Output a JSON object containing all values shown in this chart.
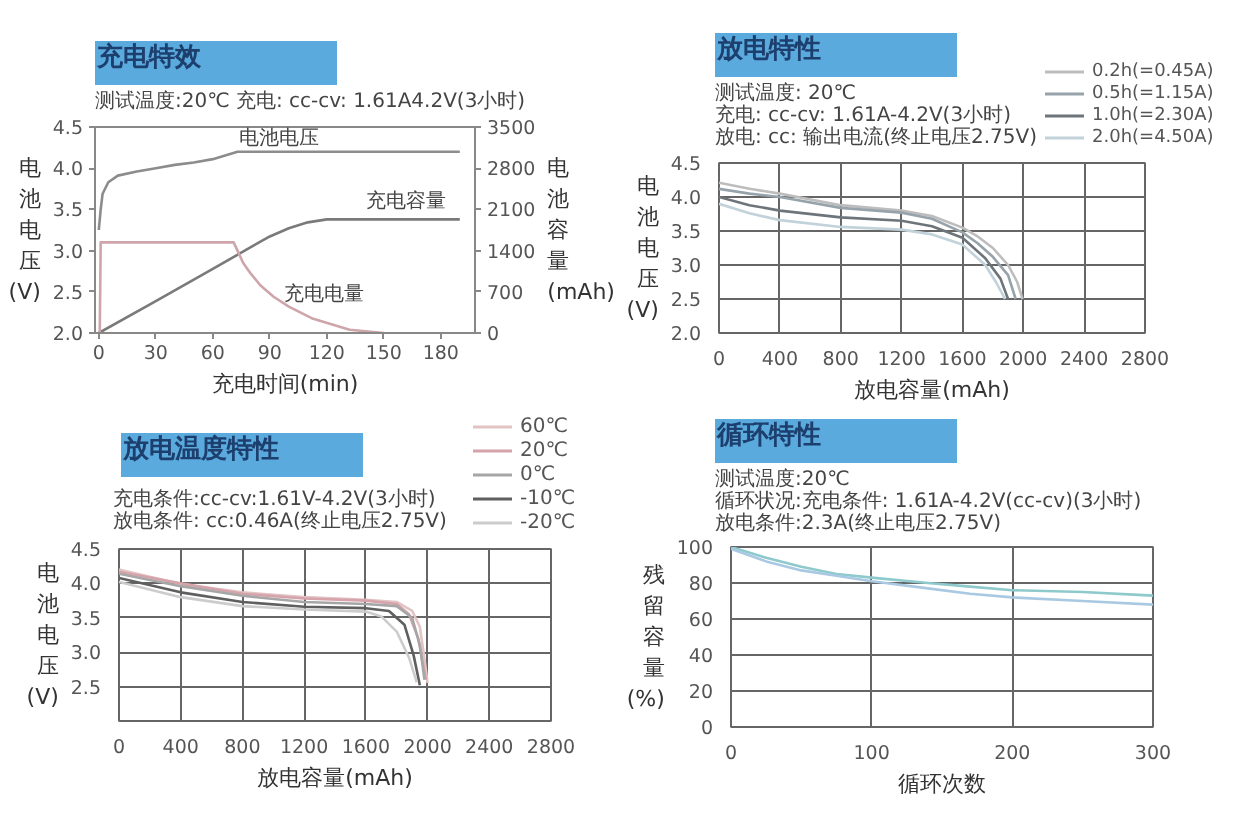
{
  "chart_data": [
    {
      "type": "line",
      "title": "充电特效",
      "subtitle": "测试温度:20℃ 充电: cc-cv: 1.61A4.2V(3小时)",
      "xlabel": "充电时间(min)",
      "ylabel": "电池电压(V)",
      "y2label": "电池容量(mAh)",
      "xlim": [
        -2,
        198
      ],
      "xticks": [
        0,
        30,
        60,
        90,
        120,
        150,
        180
      ],
      "ylim": [
        2,
        4.5
      ],
      "yticks": [
        {
          "value": 2,
          "label": "2.0"
        },
        2.5,
        {
          "value": 3,
          "label": "3.0"
        },
        3.5,
        {
          "value": 4,
          "label": "4.0"
        },
        4.5
      ],
      "y2lim": [
        0,
        3500
      ],
      "y2ticks": [
        0,
        700,
        1400,
        2100,
        2800,
        3500
      ],
      "series": [
        {
          "name": "电池电压",
          "color": "#8c8c8c",
          "x": [
            0,
            1,
            2,
            5,
            10,
            20,
            30,
            40,
            50,
            60,
            73,
            190
          ],
          "values": [
            3.25,
            3.5,
            3.69,
            3.83,
            3.91,
            3.96,
            4.0,
            4.04,
            4.07,
            4.11,
            4.2,
            4.2
          ]
        },
        {
          "name": "充电容量",
          "color": "#7a7a7a",
          "axis": "y2",
          "x": [
            0,
            30,
            60,
            72,
            80,
            90,
            100,
            110,
            120,
            190
          ],
          "values": [
            0,
            540,
            1090,
            1310,
            1460,
            1640,
            1780,
            1880,
            1930,
            1930
          ]
        },
        {
          "name": "充电电量",
          "color": "#cda5ab",
          "x": [
            0.5,
            1,
            71,
            73,
            76,
            80,
            85,
            92,
            100,
            112,
            132,
            150
          ],
          "values": [
            2.0,
            3.1,
            3.1,
            3.0,
            2.85,
            2.72,
            2.58,
            2.44,
            2.32,
            2.18,
            2.04,
            2.0
          ]
        }
      ]
    },
    {
      "type": "line",
      "title": "放电特性",
      "subtitle": "测试温度: 20℃\n充电: cc-cv: 1.61A-4.2V(3小时)\n放电: cc: 输出电流(终止电压2.75V)",
      "xlabel": "放电容量(mAh)",
      "ylabel": "电池电压(V)",
      "xlim": [
        0,
        2800
      ],
      "xticks": [
        0,
        400,
        800,
        1200,
        1600,
        2000,
        2400,
        2800
      ],
      "ylim": [
        2,
        4.5
      ],
      "yticks": [
        {
          "value": 2,
          "label": "2.0"
        },
        2.5,
        {
          "value": 3,
          "label": "3.0"
        },
        3.5,
        {
          "value": 4,
          "label": "4.0"
        },
        4.5
      ],
      "grid": true,
      "legend": "top right",
      "series": [
        {
          "name": "0.2h(=0.45A)",
          "color": "#bdbdbd",
          "x": [
            0,
            200,
            400,
            800,
            1200,
            1400,
            1600,
            1700,
            1800,
            1900,
            1960,
            1995
          ],
          "values": [
            4.21,
            4.12,
            4.05,
            3.88,
            3.8,
            3.72,
            3.55,
            3.42,
            3.25,
            3.0,
            2.75,
            2.5
          ]
        },
        {
          "name": "0.5h(=1.15A)",
          "color": "#97a3ab",
          "x": [
            0,
            200,
            400,
            800,
            1200,
            1400,
            1600,
            1700,
            1800,
            1900,
            1950
          ],
          "values": [
            4.12,
            4.05,
            4.0,
            3.84,
            3.77,
            3.68,
            3.48,
            3.32,
            3.12,
            2.85,
            2.5
          ]
        },
        {
          "name": "1.0h(=2.30A)",
          "color": "#6e757a",
          "x": [
            0,
            200,
            400,
            800,
            1200,
            1400,
            1600,
            1750,
            1850,
            1900
          ],
          "values": [
            4.0,
            3.88,
            3.8,
            3.7,
            3.65,
            3.57,
            3.4,
            3.1,
            2.8,
            2.5
          ]
        },
        {
          "name": "2.0h(=4.50A)",
          "color": "#c2d2da",
          "x": [
            0,
            200,
            400,
            800,
            1200,
            1400,
            1600,
            1750,
            1820,
            1880
          ],
          "values": [
            3.9,
            3.76,
            3.66,
            3.56,
            3.52,
            3.45,
            3.3,
            3.0,
            2.75,
            2.5
          ]
        }
      ]
    },
    {
      "type": "line",
      "title": "放电温度特性",
      "subtitle": "充电条件:cc-cv:1.61V-4.2V(3小时)\n放电条件: cc:0.46A(终止电压2.75V)",
      "xlabel": "放电容量(mAh)",
      "ylabel": "电池电压(V)",
      "xlim": [
        0,
        2800
      ],
      "xticks": [
        0,
        400,
        800,
        1200,
        1600,
        2000,
        2400,
        2800
      ],
      "ylim": [
        2,
        4.5
      ],
      "yticks": [
        2.5,
        {
          "value": 3,
          "label": "3.0"
        },
        3.5,
        {
          "value": 4,
          "label": "4.0"
        },
        4.5
      ],
      "grid": true,
      "legend": "top right",
      "series": [
        {
          "name": "60℃",
          "color": "#e2c4c4",
          "x": [
            0,
            400,
            800,
            1200,
            1600,
            1800,
            1900,
            1950,
            1980,
            2000
          ],
          "values": [
            4.2,
            3.99,
            3.87,
            3.8,
            3.76,
            3.73,
            3.6,
            3.37,
            2.9,
            2.55
          ]
        },
        {
          "name": "20℃",
          "color": "#d6a3ab",
          "x": [
            0,
            400,
            800,
            1200,
            1600,
            1800,
            1880,
            1940,
            1990
          ],
          "values": [
            4.17,
            4.0,
            3.85,
            3.78,
            3.75,
            3.7,
            3.55,
            3.2,
            2.6
          ]
        },
        {
          "name": "0℃",
          "color": "#a6a6a6",
          "x": [
            0,
            400,
            800,
            1200,
            1600,
            1800,
            1900,
            1950,
            1980
          ],
          "values": [
            4.14,
            3.96,
            3.82,
            3.73,
            3.7,
            3.67,
            3.5,
            3.1,
            2.6
          ]
        },
        {
          "name": "-10℃",
          "color": "#5f5f5f",
          "x": [
            0,
            400,
            800,
            1200,
            1600,
            1750,
            1850,
            1910,
            1950
          ],
          "values": [
            4.08,
            3.87,
            3.73,
            3.66,
            3.64,
            3.6,
            3.4,
            2.95,
            2.52
          ]
        },
        {
          "name": "-20℃",
          "color": "#cccccc",
          "x": [
            0,
            400,
            800,
            1200,
            1600,
            1700,
            1800,
            1880,
            1930
          ],
          "values": [
            4.02,
            3.8,
            3.67,
            3.62,
            3.59,
            3.52,
            3.3,
            2.92,
            2.56
          ]
        }
      ]
    },
    {
      "type": "line",
      "title": "循环特性",
      "subtitle": "测试温度:20℃\n循环状况:充电条件: 1.61A-4.2V(cc-cv)(3小时)\n放电条件:2.3A(终止电压2.75V)",
      "xlabel": "循环次数",
      "ylabel": "残留容量(%)",
      "xlim": [
        0,
        300
      ],
      "xticks": [
        0,
        100,
        200,
        300
      ],
      "ylim": [
        0,
        100
      ],
      "yticks": [
        0,
        20,
        40,
        60,
        80,
        100
      ],
      "grid": true,
      "series": [
        {
          "color": "#8ec9cc",
          "x": [
            0,
            25,
            50,
            75,
            100,
            140,
            170,
            200,
            250,
            300
          ],
          "values": [
            100,
            94,
            89,
            85,
            83,
            80,
            78,
            76,
            75,
            73
          ]
        },
        {
          "color": "#a9c9e3",
          "x": [
            0,
            25,
            50,
            75,
            100,
            140,
            170,
            200,
            250,
            300
          ],
          "values": [
            99,
            92,
            87,
            84,
            81,
            77,
            74,
            72,
            70,
            68
          ]
        }
      ]
    }
  ]
}
